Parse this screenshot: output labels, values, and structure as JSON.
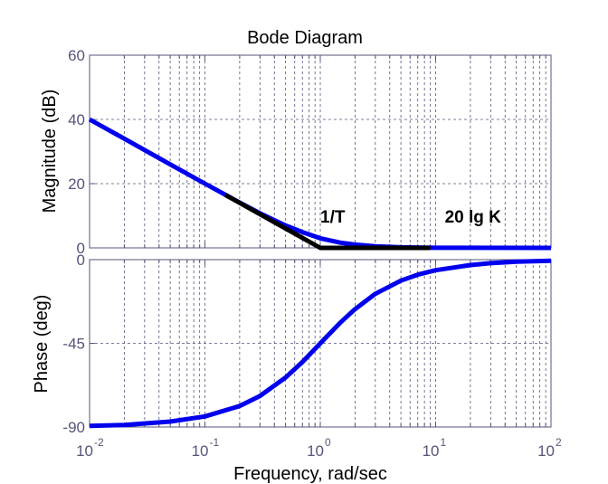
{
  "figure": {
    "title": "Bode Diagram",
    "xlabel": "Frequency, rad/sec"
  },
  "colors": {
    "curve": "#0000ee",
    "asymptote": "#000000",
    "grid": "#55557a",
    "tick_text": "#55557a"
  },
  "chart_data": [
    {
      "type": "line",
      "panel": "magnitude",
      "ylabel": "Magnitude (dB)",
      "xscale": "log",
      "xlim": [
        0.01,
        100
      ],
      "ylim": [
        0,
        60
      ],
      "yticks": [
        0,
        20,
        40,
        60
      ],
      "xticks": [
        {
          "base": "10",
          "exp": "-2"
        },
        {
          "base": "10",
          "exp": "-1"
        },
        {
          "base": "10",
          "exp": "0"
        },
        {
          "base": "10",
          "exp": "1"
        },
        {
          "base": "10",
          "exp": "2"
        }
      ],
      "grid": true,
      "series": [
        {
          "role": "exact",
          "x": [
            0.01,
            0.02,
            0.05,
            0.1,
            0.2,
            0.3,
            0.5,
            0.7,
            1,
            1.5,
            2,
            3,
            5,
            10,
            100
          ],
          "y": [
            40,
            34.0,
            26.0,
            20.0,
            14.1,
            10.8,
            7.0,
            4.9,
            3.0,
            1.6,
            1.0,
            0.5,
            0.17,
            0.04,
            0.0
          ]
        },
        {
          "role": "asymptote",
          "x": [
            0.15,
            1,
            9
          ],
          "y": [
            16.5,
            0,
            0
          ]
        }
      ],
      "annotations": [
        {
          "text": "1/T",
          "x": 1,
          "y": 4.5
        },
        {
          "text": "20 lg K",
          "x": 12,
          "y": 4.5
        }
      ]
    },
    {
      "type": "line",
      "panel": "phase",
      "ylabel": "Phase (deg)",
      "xscale": "log",
      "xlim": [
        0.01,
        100
      ],
      "ylim": [
        -90,
        0
      ],
      "yticks": [
        -90,
        -45,
        0
      ],
      "xticks": [
        {
          "base": "10",
          "exp": "-2"
        },
        {
          "base": "10",
          "exp": "-1"
        },
        {
          "base": "10",
          "exp": "0"
        },
        {
          "base": "10",
          "exp": "1"
        },
        {
          "base": "10",
          "exp": "2"
        }
      ],
      "grid": true,
      "series": [
        {
          "role": "exact",
          "x": [
            0.01,
            0.02,
            0.05,
            0.1,
            0.2,
            0.3,
            0.5,
            0.7,
            1,
            1.5,
            2,
            3,
            5,
            7,
            10,
            20,
            30,
            50,
            100
          ],
          "y": [
            -89.4,
            -88.9,
            -87.1,
            -84.3,
            -78.7,
            -73.3,
            -63.4,
            -55.0,
            -45.0,
            -33.7,
            -26.6,
            -18.4,
            -11.3,
            -8.1,
            -5.7,
            -2.9,
            -1.9,
            -1.1,
            -0.6
          ]
        }
      ]
    }
  ]
}
